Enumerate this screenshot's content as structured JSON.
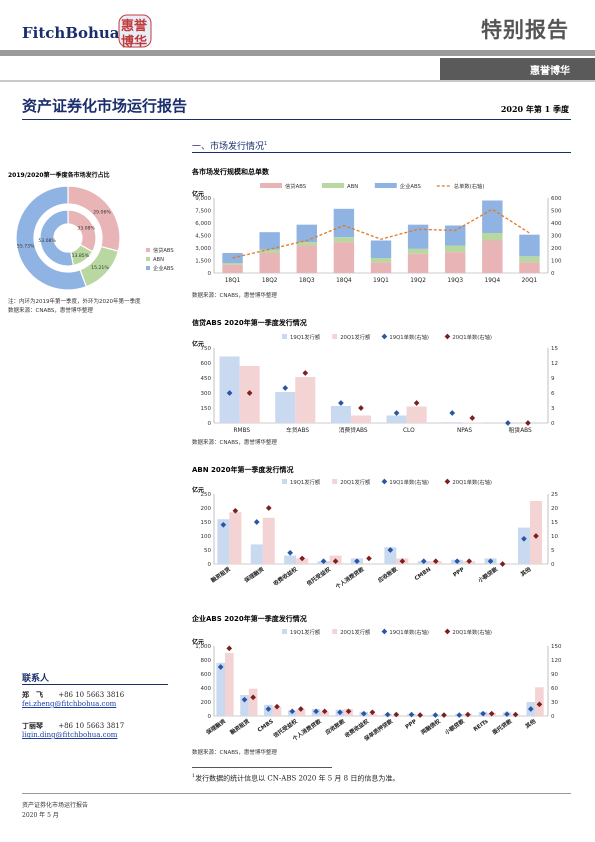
{
  "header": {
    "logo_text": "FitchBohua",
    "logo_seal": "惠誉博华",
    "banner": "特别报告",
    "subbanner": "惠誉博华"
  },
  "title": "资产证券化市场运行报告",
  "period": "2020 年第 1 季度",
  "section1": {
    "heading": "一、市场发行情况",
    "footnote_mark": "1"
  },
  "colors": {
    "xindai": "#e8b4b5",
    "abn": "#b9d7a0",
    "qiye": "#8fb3e2",
    "line": "#e07a29",
    "mark1": "#2a55a3",
    "mark2": "#7b1f1f",
    "light_blue": "#c9d9f0",
    "light_pink": "#f3d3d3",
    "navy": "#1a2e6b"
  },
  "pie": {
    "title": "2019/2020第一季度各市场发行占比",
    "outer": [
      {
        "name": "信贷ABS",
        "pct": 29.06,
        "label": "29.06%"
      },
      {
        "name": "ABN",
        "pct": 15.21,
        "label": "15.21%"
      },
      {
        "name": "企业ABS",
        "pct": 55.73,
        "label": "55.73%"
      }
    ],
    "inner": [
      {
        "name": "信贷ABS",
        "pct": 33.08,
        "label": "33.08%"
      },
      {
        "name": "ABN",
        "pct": 13.85,
        "label": "13.85%"
      },
      {
        "name": "企业ABS",
        "pct": 53.08,
        "label": "53.08%"
      }
    ],
    "legend": [
      "信贷ABS",
      "ABN",
      "企业ABS"
    ],
    "note1": "注：内环为2019年第一季度，外环为2020年第一季度",
    "note2": "数据来源：CNABS，惠誉博华整理"
  },
  "chart_data": [
    {
      "type": "bar",
      "title": "各市场发行规模和总单数",
      "ylabel": "亿元",
      "categories": [
        "18Q1",
        "18Q2",
        "18Q3",
        "18Q4",
        "19Q1",
        "19Q2",
        "19Q3",
        "19Q4",
        "20Q1"
      ],
      "stacked": true,
      "series": [
        {
          "name": "信贷ABS",
          "values": [
            1000,
            2400,
            3300,
            3700,
            1300,
            2300,
            2500,
            3900,
            1300
          ]
        },
        {
          "name": "ABN",
          "values": [
            200,
            400,
            400,
            600,
            500,
            600,
            800,
            900,
            700
          ]
        },
        {
          "name": "企业ABS",
          "values": [
            1200,
            2100,
            2100,
            3400,
            2100,
            2900,
            2400,
            3900,
            2600
          ]
        },
        {
          "name": "总单数(右轴)",
          "type": "line",
          "axis": "right",
          "values": [
            120,
            190,
            260,
            380,
            270,
            350,
            340,
            510,
            320
          ]
        }
      ],
      "ylim": [
        0,
        9000
      ],
      "y_ticks": [
        "0",
        "1,500",
        "3,000",
        "4,500",
        "6,000",
        "7,500",
        "9,000"
      ],
      "y2lim": [
        0,
        600
      ],
      "y2_ticks": [
        "0",
        "100",
        "200",
        "300",
        "400",
        "500",
        "600"
      ],
      "source": "数据来源：CNABS，惠誉博华整理"
    },
    {
      "type": "bar",
      "title": "信贷ABS 2020年第一季度发行情况",
      "ylabel": "亿元",
      "categories": [
        "RMBS",
        "车贷ABS",
        "消费贷ABS",
        "CLO",
        "NPAS",
        "租赁ABS"
      ],
      "series": [
        {
          "name": "19Q1发行额",
          "values": [
            665,
            310,
            170,
            75,
            8,
            0
          ]
        },
        {
          "name": "20Q1发行额",
          "values": [
            570,
            460,
            75,
            165,
            5,
            0
          ]
        },
        {
          "name": "19Q1单数(右轴)",
          "type": "scatter",
          "axis": "right",
          "values": [
            6,
            7,
            4,
            2,
            2,
            0
          ]
        },
        {
          "name": "20Q1单数(右轴)",
          "type": "scatter",
          "axis": "right",
          "values": [
            6,
            10,
            3,
            4,
            1,
            0
          ]
        }
      ],
      "ylim": [
        0,
        750
      ],
      "y_ticks": [
        "0",
        "150",
        "300",
        "450",
        "600",
        "750"
      ],
      "y2lim": [
        0,
        15
      ],
      "y2_ticks": [
        "0",
        "3",
        "6",
        "9",
        "12",
        "15"
      ],
      "source": "数据来源：CNABS，惠誉博华整理"
    },
    {
      "type": "bar",
      "title": "ABN 2020年第一季度发行情况",
      "ylabel": "亿元",
      "categories": [
        "融资租赁",
        "保理融资",
        "收费收益权",
        "信托受益权",
        "个人消费贷款",
        "应收账款",
        "CMBN",
        "PPP",
        "小额贷款",
        "其他"
      ],
      "series": [
        {
          "name": "19Q1发行额",
          "values": [
            160,
            70,
            30,
            10,
            20,
            60,
            10,
            15,
            20,
            130
          ]
        },
        {
          "name": "20Q1发行额",
          "values": [
            185,
            165,
            20,
            30,
            0,
            20,
            10,
            10,
            0,
            225
          ]
        },
        {
          "name": "19Q1单数(右轴)",
          "type": "scatter",
          "axis": "right",
          "values": [
            14,
            15,
            4,
            1,
            1,
            5,
            1,
            1,
            1,
            9
          ]
        },
        {
          "name": "20Q1单数(右轴)",
          "type": "scatter",
          "axis": "right",
          "values": [
            19,
            20,
            2,
            1,
            2,
            1,
            1,
            1,
            0,
            10
          ]
        }
      ],
      "ylim": [
        0,
        250
      ],
      "y_ticks": [
        "0",
        "50",
        "100",
        "150",
        "200",
        "250"
      ],
      "y2lim": [
        0,
        25
      ],
      "y2_ticks": [
        "0",
        "5",
        "10",
        "15",
        "20",
        "25"
      ],
      "source": ""
    },
    {
      "type": "bar",
      "title": "企业ABS 2020年第一季度发行情况",
      "ylabel": "亿元",
      "categories": [
        "保理融资",
        "融资租赁",
        "CMBS",
        "信托受益权",
        "个人消费贷款",
        "应收账款",
        "收费收益权",
        "保单质押贷款",
        "PPP",
        "两融债权",
        "小额贷款",
        "REITs",
        "委托贷款",
        "其他"
      ],
      "series": [
        {
          "name": "19Q1发行额",
          "values": [
            760,
            300,
            160,
            80,
            100,
            90,
            60,
            30,
            30,
            20,
            30,
            60,
            50,
            200
          ]
        },
        {
          "name": "20Q1发行额",
          "values": [
            900,
            390,
            130,
            100,
            60,
            100,
            30,
            10,
            20,
            10,
            30,
            40,
            20,
            410
          ]
        },
        {
          "name": "19Q1单数(右轴)",
          "type": "scatter",
          "axis": "right",
          "values": [
            105,
            35,
            15,
            10,
            10,
            8,
            5,
            3,
            3,
            2,
            2,
            5,
            4,
            15
          ]
        },
        {
          "name": "20Q1单数(右轴)",
          "type": "scatter",
          "axis": "right",
          "values": [
            145,
            40,
            20,
            15,
            10,
            10,
            8,
            3,
            2,
            2,
            3,
            5,
            3,
            25
          ]
        }
      ],
      "ylim": [
        0,
        1000
      ],
      "y_ticks": [
        "0",
        "200",
        "400",
        "600",
        "800",
        "1,000"
      ],
      "y2lim": [
        0,
        150
      ],
      "y2_ticks": [
        "0",
        "30",
        "60",
        "90",
        "120",
        "150"
      ],
      "source": "数据来源：CNABS，惠誉博华整理"
    }
  ],
  "contacts": {
    "title": "联系人",
    "people": [
      {
        "name": "郑　飞",
        "phone": "+86 10 5663 3816",
        "email": "fei.zheng@fitchbohua.com"
      },
      {
        "name": "丁丽琴",
        "phone": "+86 10 5663 3817",
        "email": "liqin.ding@fitchbohua.com"
      }
    ]
  },
  "footnote": "发行数据的统计信息以 CN-ABS 2020 年 5 月 8 日的信息为准。",
  "footer": {
    "line1": "资产证券化市场运行报告",
    "line2": "2020 年 5 月"
  }
}
